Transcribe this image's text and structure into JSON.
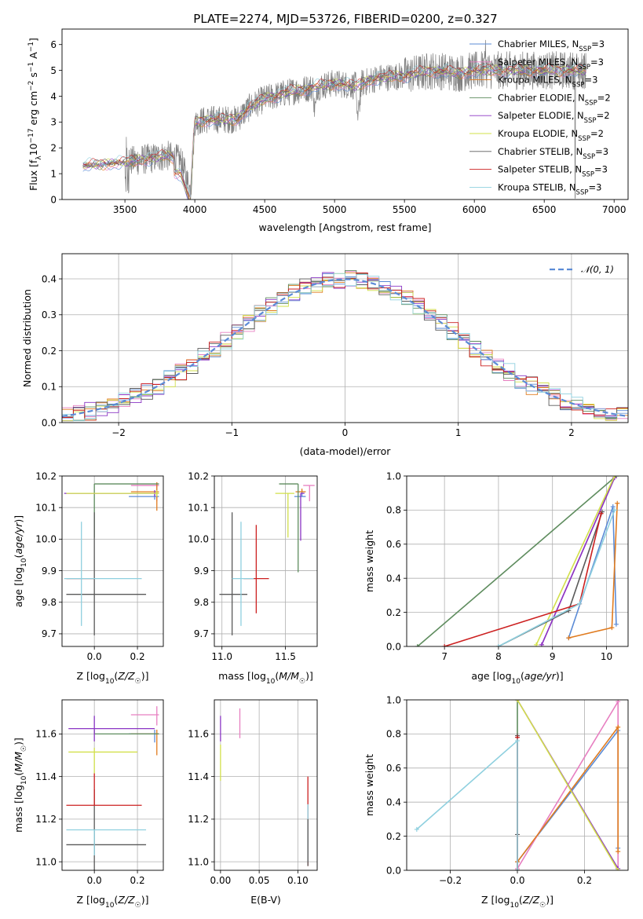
{
  "title": "PLATE=2274, MJD=53726, FIBERID=0200, z=0.327",
  "colors": {
    "chabrier_miles": "#5b8bd6",
    "salpeter_miles": "#e77fc1",
    "kroupa_miles": "#e07b1f",
    "chabrier_elodie": "#5e8c5e",
    "salpeter_elodie": "#8a35c4",
    "kroupa_elodie": "#d2e04a",
    "chabrier_stelib": "#5a5a5a",
    "salpeter_stelib": "#cc2020",
    "kroupa_stelib": "#8fd0df",
    "data": "#808080",
    "normal": "#5b8bd6"
  },
  "legend": [
    {
      "label": "Chabrier MILES, N",
      "sub": "SSP",
      "suffix": "=3",
      "color": "chabrier_miles"
    },
    {
      "label": "Salpeter MILES, N",
      "sub": "SSP",
      "suffix": "=3",
      "color": "salpeter_miles"
    },
    {
      "label": "Kroupa MILES, N",
      "sub": "SSP",
      "suffix": "=3",
      "color": "kroupa_miles"
    },
    {
      "label": "Chabrier ELODIE, N",
      "sub": "SSP",
      "suffix": "=2",
      "color": "chabrier_elodie"
    },
    {
      "label": "Salpeter ELODIE, N",
      "sub": "SSP",
      "suffix": "=2",
      "color": "salpeter_elodie"
    },
    {
      "label": "Kroupa ELODIE, N",
      "sub": "SSP",
      "suffix": "=2",
      "color": "kroupa_elodie"
    },
    {
      "label": "Chabrier STELIB, N",
      "sub": "SSP",
      "suffix": "=3",
      "color": "chabrier_stelib"
    },
    {
      "label": "Salpeter STELIB, N",
      "sub": "SSP",
      "suffix": "=3",
      "color": "salpeter_stelib"
    },
    {
      "label": "Kroupa STELIB, N",
      "sub": "SSP",
      "suffix": "=3",
      "color": "kroupa_stelib"
    }
  ],
  "chart_data": [
    {
      "id": "spectrum",
      "type": "line",
      "xlabel": "wavelength [Angstrom, rest frame]",
      "ylabel": "Flux [f_λ10^-17 erg cm^-2 s^-1 A^-1]",
      "ylabel_parts": {
        "a": "Flux [f",
        "b": "λ",
        "c": "10",
        "d": "−17",
        "e": " erg cm",
        "f": "−2",
        "g": " s",
        "h": "−1",
        "i": " A",
        "j": "−1",
        "k": "]"
      },
      "xlim": [
        3050,
        7100
      ],
      "ylim": [
        0,
        6.6
      ],
      "xticks": [
        3500,
        4000,
        4500,
        5000,
        5500,
        6000,
        6500,
        7000
      ],
      "yticks": [
        0,
        1,
        2,
        3,
        4,
        5,
        6
      ],
      "data_range": [
        3200,
        6800
      ],
      "continuum": [
        [
          3200,
          1.3
        ],
        [
          3500,
          1.45
        ],
        [
          3700,
          1.6
        ],
        [
          3800,
          1.7
        ],
        [
          3900,
          1.5
        ],
        [
          3970,
          0.3
        ],
        [
          4000,
          3.0
        ],
        [
          4100,
          3.1
        ],
        [
          4300,
          3.1
        ],
        [
          4400,
          3.6
        ],
        [
          4500,
          3.9
        ],
        [
          4700,
          4.2
        ],
        [
          4900,
          4.4
        ],
        [
          5000,
          4.5
        ],
        [
          5150,
          4.4
        ],
        [
          5300,
          4.7
        ],
        [
          5500,
          4.8
        ],
        [
          5700,
          5.0
        ],
        [
          5900,
          4.9
        ],
        [
          6000,
          5.0
        ],
        [
          6500,
          5.0
        ],
        [
          6800,
          5.0
        ]
      ]
    },
    {
      "id": "residuals",
      "type": "histogram",
      "xlabel": "(data-model)/error",
      "ylabel": "Normed distribution",
      "xlim": [
        -2.5,
        2.5
      ],
      "ylim": [
        0,
        0.47
      ],
      "xticks": [
        -2,
        -1,
        0,
        1,
        2
      ],
      "yticks": [
        0.0,
        0.1,
        0.2,
        0.3,
        0.4
      ],
      "normal_label": "N(0,1)",
      "normal_label_display": "𝒩(0, 1)",
      "bin_width": 0.1
    },
    {
      "id": "age_vs_Z",
      "type": "errorbar",
      "xlabel": "Z [log10(Z/Z☉)]",
      "ylabel": "age  [log10(age/yr)]",
      "xlim": [
        -0.15,
        0.32
      ],
      "ylim": [
        9.66,
        10.2
      ],
      "xticks": [
        0.0,
        0.2
      ],
      "yticks": [
        9.7,
        9.8,
        9.9,
        10.0,
        10.1,
        10.2
      ],
      "points": [
        {
          "c": "chabrier_miles",
          "x": 0.28,
          "y": 10.135,
          "xe": [
            0.12,
            0.02
          ],
          "ye": [
            0.01,
            0.01
          ]
        },
        {
          "c": "salpeter_miles",
          "x": 0.29,
          "y": 10.17,
          "xe": [
            0.12,
            0.01
          ],
          "ye": [
            0.05,
            0.01
          ]
        },
        {
          "c": "kroupa_miles",
          "x": 0.29,
          "y": 10.15,
          "xe": [
            0.12,
            0.01
          ],
          "ye": [
            0.06,
            0.03
          ]
        },
        {
          "c": "chabrier_elodie",
          "x": 0.0,
          "y": 10.175,
          "xe": [
            0.0,
            0.3
          ],
          "ye": [
            0.17,
            0.0
          ]
        },
        {
          "c": "salpeter_elodie",
          "x": 0.28,
          "y": 10.145,
          "xe": [
            0.42,
            0.02
          ],
          "ye": [
            0.01,
            0.01
          ]
        },
        {
          "c": "kroupa_elodie",
          "x": 0.29,
          "y": 10.145,
          "xe": [
            0.42,
            0.01
          ],
          "ye": [
            0.01,
            0.01
          ]
        },
        {
          "c": "chabrier_stelib",
          "x": 0.0,
          "y": 9.825,
          "xe": [
            0.13,
            0.24
          ],
          "ye": [
            0.13,
            0.26
          ]
        },
        {
          "c": "salpeter_stelib",
          "x": 0.0,
          "y": 9.875,
          "xe": [
            0.13,
            0.0
          ],
          "ye": [
            0.0,
            0.0
          ]
        },
        {
          "c": "kroupa_stelib",
          "x": -0.06,
          "y": 9.875,
          "xe": [
            0.08,
            0.28
          ],
          "ye": [
            0.15,
            0.18
          ]
        }
      ]
    },
    {
      "id": "age_vs_mass",
      "type": "errorbar",
      "xlabel": "mass [log10(M/M☉)]",
      "ylabel": "",
      "xlim": [
        10.94,
        11.75
      ],
      "ylim": [
        9.66,
        10.2
      ],
      "xticks": [
        11.0,
        11.5
      ],
      "yticks": [
        9.7,
        9.8,
        9.9,
        10.0,
        10.1,
        10.2
      ],
      "points": [
        {
          "c": "chabrier_miles",
          "x": 11.63,
          "y": 10.135,
          "xe": [
            0.06,
            0.03
          ],
          "ye": [
            0.0,
            0.02
          ]
        },
        {
          "c": "salpeter_miles",
          "x": 11.69,
          "y": 10.17,
          "xe": [
            0.05,
            0.04
          ],
          "ye": [
            0.05,
            0.0
          ]
        },
        {
          "c": "kroupa_miles",
          "x": 11.63,
          "y": 10.15,
          "xe": [
            0.05,
            0.03
          ],
          "ye": [
            0.0,
            0.01
          ]
        },
        {
          "c": "chabrier_elodie",
          "x": 11.6,
          "y": 10.175,
          "xe": [
            0.15,
            0.0
          ],
          "ye": [
            0.28,
            0.0
          ]
        },
        {
          "c": "salpeter_elodie",
          "x": 11.62,
          "y": 10.145,
          "xe": [
            0.0,
            0.03
          ],
          "ye": [
            0.15,
            0.0
          ]
        },
        {
          "c": "kroupa_elodie",
          "x": 11.52,
          "y": 10.145,
          "xe": [
            0.1,
            0.05
          ],
          "ye": [
            0.14,
            0.0
          ]
        },
        {
          "c": "chabrier_stelib",
          "x": 11.08,
          "y": 9.825,
          "xe": [
            0.1,
            0.12
          ],
          "ye": [
            0.13,
            0.26
          ]
        },
        {
          "c": "salpeter_stelib",
          "x": 11.27,
          "y": 9.875,
          "xe": [
            0.1,
            0.1
          ],
          "ye": [
            0.11,
            0.17
          ]
        },
        {
          "c": "kroupa_stelib",
          "x": 11.15,
          "y": 9.875,
          "xe": [
            0.07,
            0.1
          ],
          "ye": [
            0.15,
            0.18
          ]
        }
      ]
    },
    {
      "id": "massweight_vs_age",
      "type": "line",
      "xlabel": "age  [log10(age/yr)]",
      "ylabel": "mass weight",
      "xlim": [
        6.3,
        10.4
      ],
      "ylim": [
        0,
        1.0
      ],
      "xticks": [
        7,
        8,
        9,
        10
      ],
      "yticks": [
        0.0,
        0.2,
        0.4,
        0.6,
        0.8,
        1.0
      ],
      "series": [
        {
          "c": "chabrier_miles",
          "pts": [
            [
              9.3,
              0.05
            ],
            [
              10.12,
              0.82
            ],
            [
              10.18,
              0.13
            ]
          ]
        },
        {
          "c": "salpeter_miles",
          "pts": [
            [
              8.8,
              0.01
            ],
            [
              10.15,
              0.99
            ]
          ]
        },
        {
          "c": "kroupa_miles",
          "pts": [
            [
              9.3,
              0.05
            ],
            [
              10.1,
              0.11
            ],
            [
              10.2,
              0.84
            ]
          ]
        },
        {
          "c": "chabrier_elodie",
          "pts": [
            [
              6.5,
              0.0
            ],
            [
              10.18,
              1.0
            ]
          ]
        },
        {
          "c": "salpeter_elodie",
          "pts": [
            [
              8.8,
              0.01
            ],
            [
              10.15,
              0.99
            ]
          ]
        },
        {
          "c": "kroupa_elodie",
          "pts": [
            [
              8.7,
              0.01
            ],
            [
              10.15,
              1.0
            ]
          ]
        },
        {
          "c": "chabrier_stelib",
          "pts": [
            [
              8.0,
              0.0
            ],
            [
              9.3,
              0.21
            ],
            [
              9.92,
              0.79
            ]
          ]
        },
        {
          "c": "salpeter_stelib",
          "pts": [
            [
              7.0,
              0.0
            ],
            [
              9.5,
              0.25
            ],
            [
              9.9,
              0.78
            ]
          ]
        },
        {
          "c": "kroupa_stelib",
          "pts": [
            [
              8.0,
              0.0
            ],
            [
              9.5,
              0.25
            ],
            [
              10.15,
              0.8
            ]
          ]
        }
      ]
    },
    {
      "id": "mass_vs_Z",
      "type": "errorbar",
      "xlabel": "Z [log10(Z/Z☉)]",
      "ylabel": "mass [log10(M/M☉)]",
      "xlim": [
        -0.15,
        0.32
      ],
      "ylim": [
        10.96,
        11.76
      ],
      "xticks": [
        0.0,
        0.2
      ],
      "yticks": [
        11.0,
        11.2,
        11.4,
        11.6
      ],
      "points": [
        {
          "c": "chabrier_miles",
          "x": 0.28,
          "y": 11.6,
          "xe": [
            0.12,
            0.02
          ],
          "ye": [
            0.04,
            0.02
          ]
        },
        {
          "c": "salpeter_miles",
          "x": 0.29,
          "y": 11.69,
          "xe": [
            0.12,
            0.01
          ],
          "ye": [
            0.05,
            0.04
          ]
        },
        {
          "c": "kroupa_miles",
          "x": 0.29,
          "y": 11.6,
          "xe": [
            0.12,
            0.01
          ],
          "ye": [
            0.1,
            0.02
          ]
        },
        {
          "c": "chabrier_elodie",
          "x": 0.0,
          "y": 11.6,
          "xe": [
            0.0,
            0.3
          ],
          "ye": [
            0.0,
            0.02
          ]
        },
        {
          "c": "salpeter_elodie",
          "x": 0.0,
          "y": 11.625,
          "xe": [
            0.12,
            0.28
          ],
          "ye": [
            0.06,
            0.06
          ]
        },
        {
          "c": "kroupa_elodie",
          "x": 0.0,
          "y": 11.515,
          "xe": [
            0.12,
            0.2
          ],
          "ye": [
            0.1,
            0.02
          ]
        },
        {
          "c": "chabrier_stelib",
          "x": 0.0,
          "y": 11.08,
          "xe": [
            0.13,
            0.24
          ],
          "ye": [
            0.12,
            0.26
          ]
        },
        {
          "c": "salpeter_stelib",
          "x": 0.0,
          "y": 11.265,
          "xe": [
            0.13,
            0.22
          ],
          "ye": [
            0.0,
            0.15
          ]
        },
        {
          "c": "kroupa_stelib",
          "x": 0.0,
          "y": 11.15,
          "xe": [
            0.13,
            0.24
          ],
          "ye": [
            0.12,
            0.0
          ]
        }
      ]
    },
    {
      "id": "mass_vs_EBV",
      "type": "errorbar",
      "xlabel": "E(B-V)",
      "ylabel": "",
      "xlim": [
        -0.008,
        0.125
      ],
      "ylim": [
        10.96,
        11.76
      ],
      "xticks": [
        0.0,
        0.05,
        0.1
      ],
      "xticklabels": [
        "0.00",
        "0.05",
        "0.10"
      ],
      "yticks": [
        11.0,
        11.2,
        11.4,
        11.6
      ],
      "points": [
        {
          "c": "salpeter_miles",
          "x": 0.025,
          "y": 11.63,
          "xe": [
            0,
            0
          ],
          "ye": [
            0.05,
            0.09
          ]
        },
        {
          "c": "salpeter_elodie",
          "x": 0.0,
          "y": 11.625,
          "xe": [
            0,
            0
          ],
          "ye": [
            0.06,
            0.06
          ]
        },
        {
          "c": "kroupa_elodie",
          "x": 0.0,
          "y": 11.5,
          "xe": [
            0,
            0
          ],
          "ye": [
            0.12,
            0.05
          ]
        },
        {
          "c": "salpeter_stelib",
          "x": 0.113,
          "y": 11.2,
          "xe": [
            0,
            0
          ],
          "ye": [
            0.22,
            0.2
          ]
        },
        {
          "c": "kroupa_stelib",
          "x": 0.113,
          "y": 11.15,
          "xe": [
            0,
            0
          ],
          "ye": [
            0.15,
            0.12
          ]
        },
        {
          "c": "chabrier_stelib",
          "x": 0.113,
          "y": 11.1,
          "xe": [
            0,
            0
          ],
          "ye": [
            0.12,
            0.1
          ]
        }
      ]
    },
    {
      "id": "massweight_vs_Z",
      "type": "line",
      "xlabel": "Z [log10(Z/Z☉)]",
      "ylabel": "mass weight",
      "xlim": [
        -0.33,
        0.33
      ],
      "ylim": [
        0,
        1.0
      ],
      "xticks": [
        -0.2,
        0.0,
        0.2
      ],
      "xticklabels": [
        "−0.2",
        "0.0",
        "0.2"
      ],
      "yticks": [
        0.0,
        0.2,
        0.4,
        0.6,
        0.8,
        1.0
      ],
      "series": [
        {
          "c": "chabrier_miles",
          "pts": [
            [
              0.0,
              0.05
            ],
            [
              0.3,
              0.82
            ],
            [
              0.3,
              0.13
            ]
          ]
        },
        {
          "c": "salpeter_miles",
          "pts": [
            [
              0.0,
              0.01
            ],
            [
              0.3,
              0.99
            ],
            [
              0.3,
              0.0
            ]
          ]
        },
        {
          "c": "kroupa_miles",
          "pts": [
            [
              0.0,
              0.05
            ],
            [
              0.3,
              0.84
            ],
            [
              0.3,
              0.11
            ]
          ]
        },
        {
          "c": "chabrier_elodie",
          "pts": [
            [
              0.0,
              0.0
            ],
            [
              0.0,
              1.0
            ]
          ]
        },
        {
          "c": "salpeter_elodie",
          "pts": [
            [
              0.0,
              1.0
            ],
            [
              0.3,
              0.01
            ]
          ]
        },
        {
          "c": "kroupa_elodie",
          "pts": [
            [
              0.0,
              1.0
            ],
            [
              0.3,
              0.0
            ]
          ]
        },
        {
          "c": "chabrier_stelib",
          "pts": [
            [
              0.0,
              0.0
            ],
            [
              0.0,
              0.21
            ],
            [
              0.0,
              0.79
            ]
          ]
        },
        {
          "c": "salpeter_stelib",
          "pts": [
            [
              0.0,
              0.0
            ],
            [
              0.0,
              0.78
            ]
          ]
        },
        {
          "c": "kroupa_stelib",
          "pts": [
            [
              -0.3,
              0.24
            ],
            [
              0.0,
              0.76
            ],
            [
              0.0,
              0.0
            ]
          ]
        }
      ]
    }
  ]
}
